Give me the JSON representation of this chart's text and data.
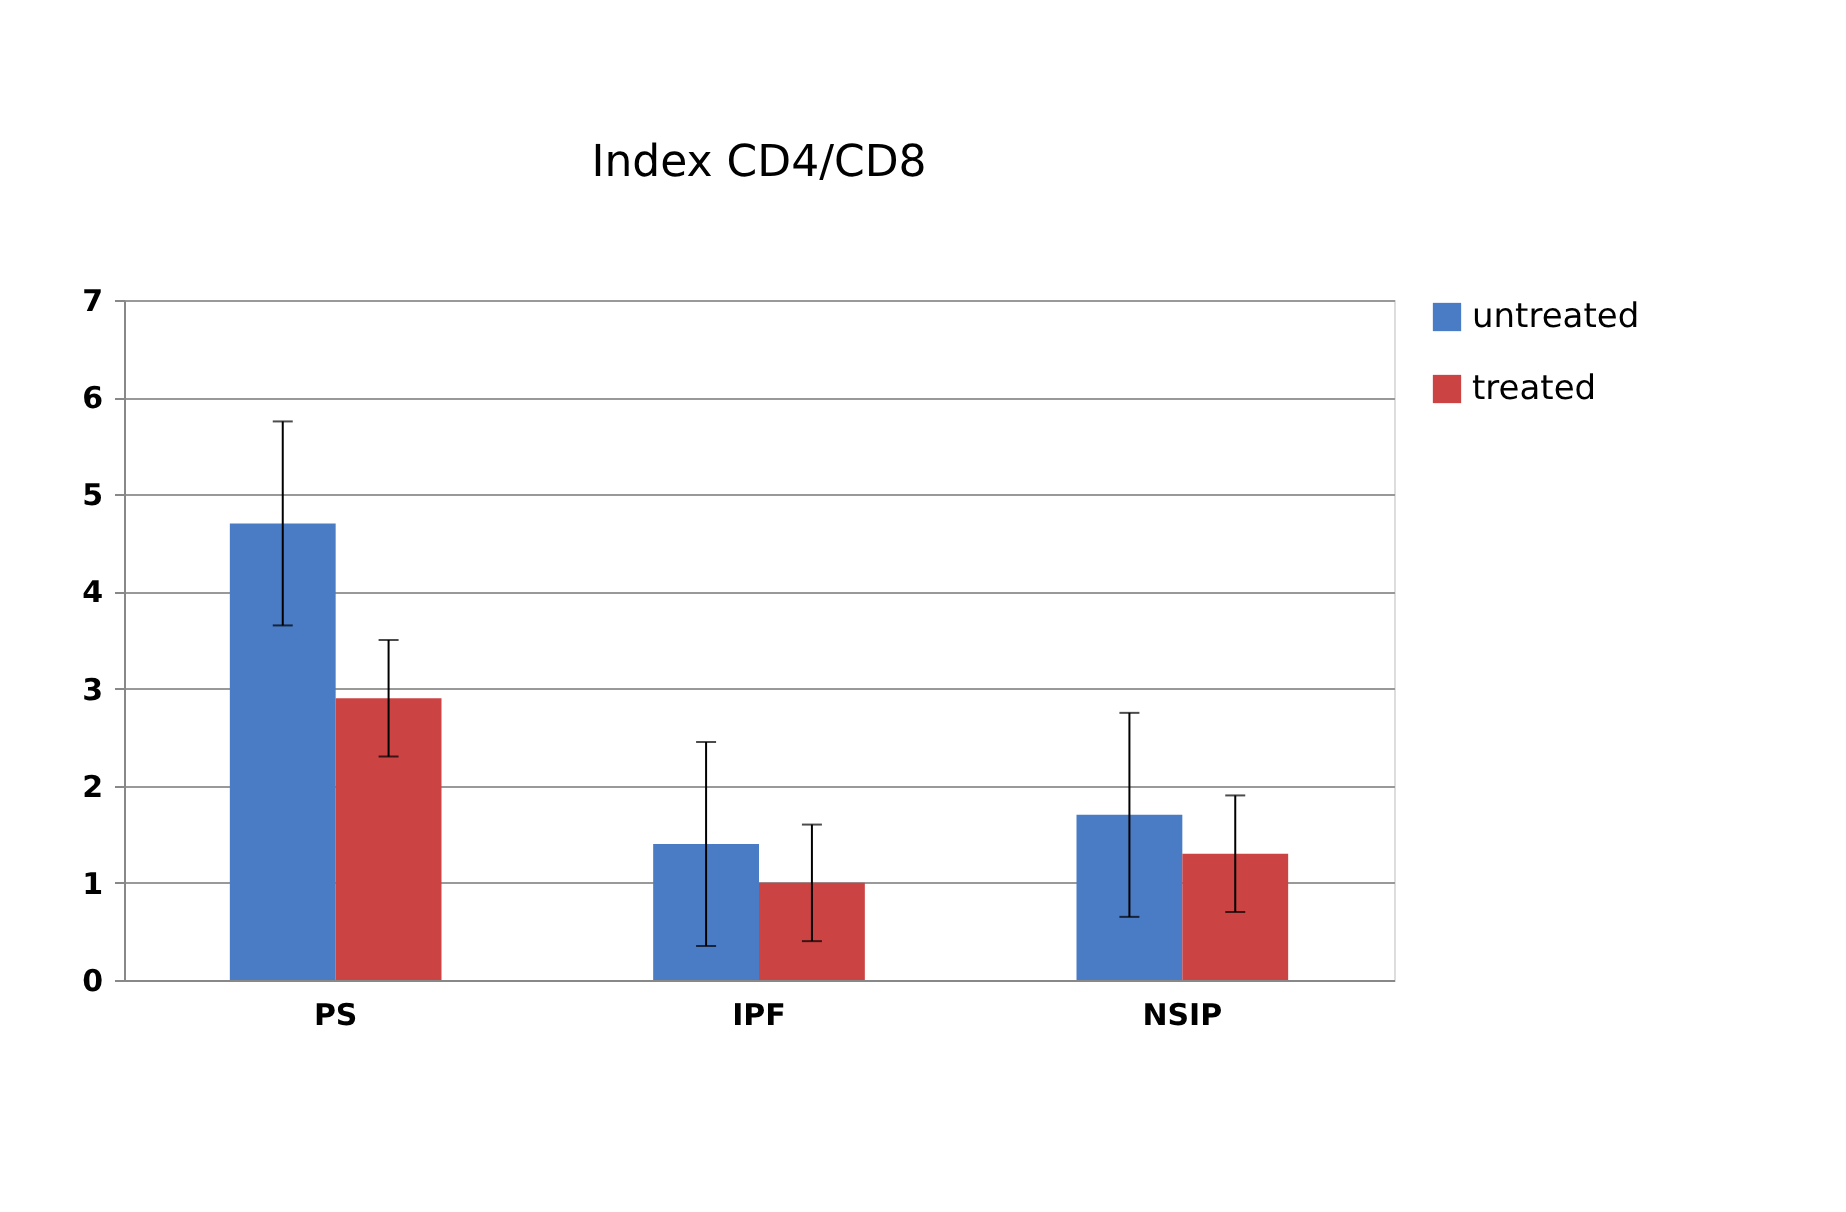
{
  "chart_data": {
    "type": "bar",
    "title": "Index CD4/CD8",
    "categories": [
      "PS",
      "IPF",
      "NSIP"
    ],
    "series": [
      {
        "name": "untreated",
        "color": "#4a7cc6",
        "values": [
          4.7,
          1.4,
          1.7
        ],
        "errors": [
          1.05,
          1.05,
          1.05
        ]
      },
      {
        "name": "treated",
        "color": "#cc4343",
        "values": [
          2.9,
          1.0,
          1.3
        ],
        "errors": [
          0.6,
          0.6,
          0.6
        ]
      }
    ],
    "ylim": [
      0,
      7
    ],
    "yticks": [
      0,
      1,
      2,
      3,
      4,
      5,
      6,
      7
    ],
    "grid": "y",
    "legend": "right"
  }
}
